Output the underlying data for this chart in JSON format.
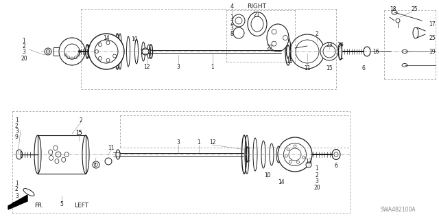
{
  "bg_color": "#ffffff",
  "fg_color": "#1a1a1a",
  "gray": "#888888",
  "figsize": [
    6.4,
    3.19
  ],
  "dpi": 100,
  "watermark": "SWA4B2100A",
  "arrow_label": "FR.",
  "right_label": "RIGHT",
  "left_label": "LEFT"
}
